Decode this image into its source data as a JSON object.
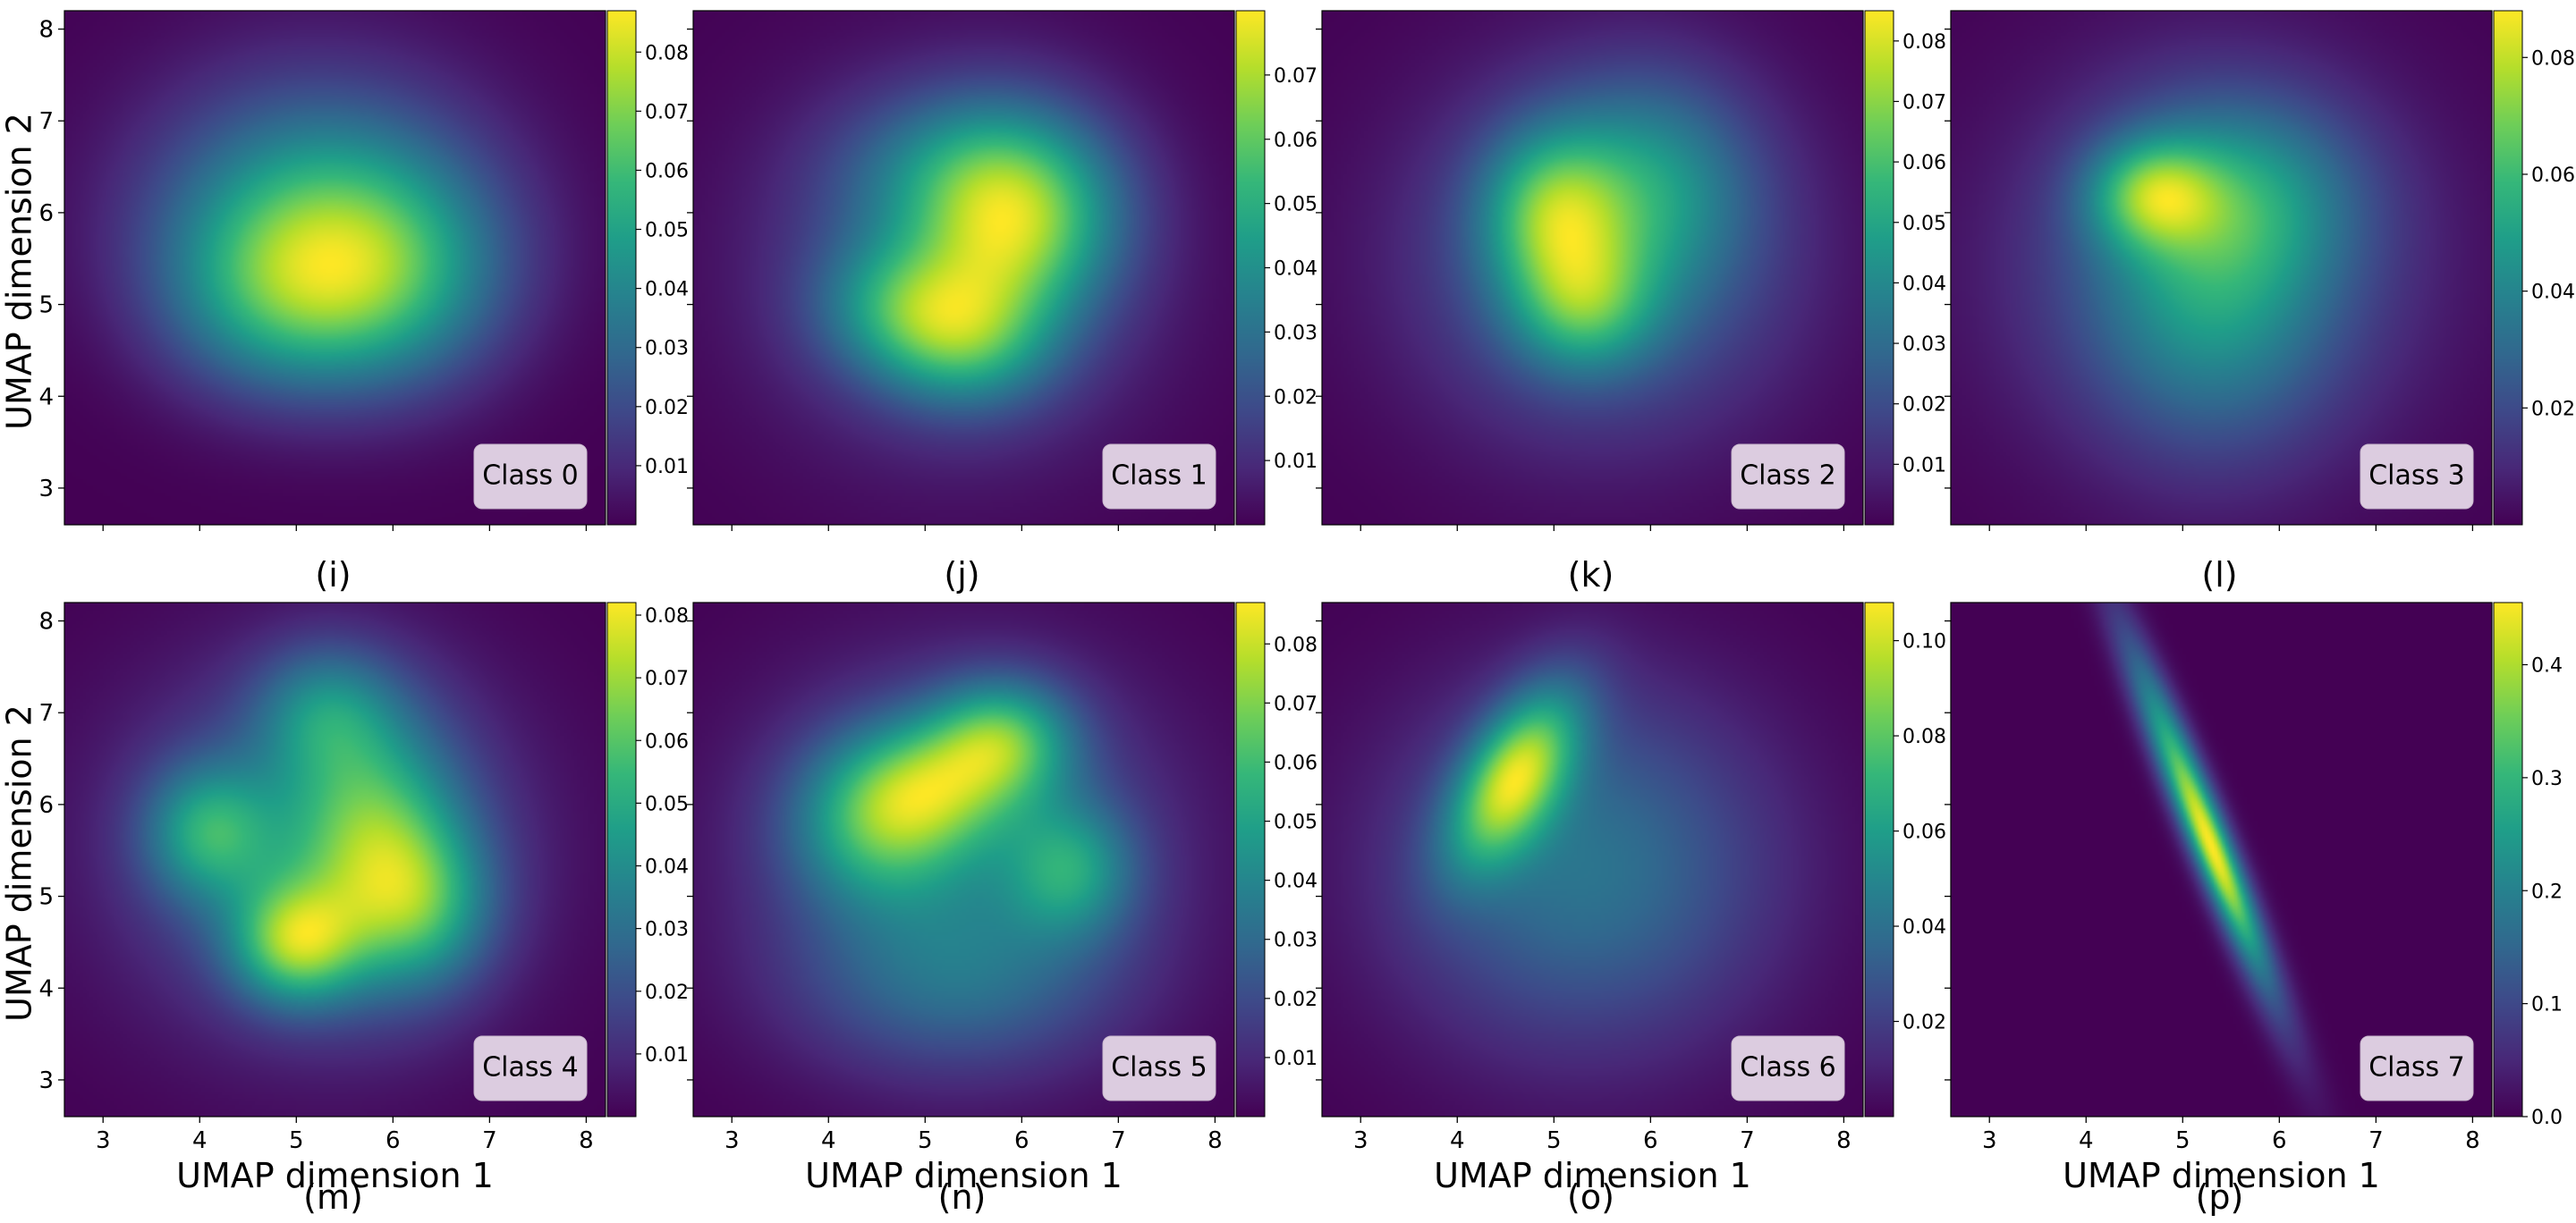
{
  "chart_data": [
    {
      "type": "heatmap",
      "panel": "(i)",
      "badge": "Class 0",
      "xlim": [
        2.6,
        8.2
      ],
      "ylim": [
        2.6,
        8.2
      ],
      "xticks": [
        3,
        4,
        5,
        6,
        7,
        8
      ],
      "yticks": [
        3,
        4,
        5,
        6,
        7,
        8
      ],
      "xlabel": "",
      "ylabel": "UMAP dimension 2",
      "show_xticklabels": false,
      "show_yticklabels": true,
      "colormap": "viridis",
      "colorbar_range": [
        0.0,
        0.087
      ],
      "colorbar_ticks": [
        0.01,
        0.02,
        0.03,
        0.04,
        0.05,
        0.06,
        0.07,
        0.08
      ],
      "colorbar_tick_labels": [
        "0.01",
        "0.02",
        "0.03",
        "0.04",
        "0.05",
        "0.06",
        "0.07",
        "0.08"
      ],
      "density_peaks": [
        {
          "x": 5.3,
          "y": 5.6,
          "sx": 1.05,
          "sy": 0.85,
          "w": 1.0
        },
        {
          "x": 4.8,
          "y": 5.0,
          "sx": 0.8,
          "sy": 0.7,
          "w": 0.6
        },
        {
          "x": 6.0,
          "y": 5.2,
          "sx": 0.8,
          "sy": 0.8,
          "w": 0.6
        },
        {
          "x": 5.2,
          "y": 6.3,
          "sx": 1.2,
          "sy": 1.0,
          "w": 0.5
        }
      ]
    },
    {
      "type": "heatmap",
      "panel": "(j)",
      "badge": "Class 1",
      "xlim": [
        2.6,
        8.2
      ],
      "ylim": [
        2.6,
        8.2
      ],
      "xticks": [
        3,
        4,
        5,
        6,
        7,
        8
      ],
      "yticks": [
        3,
        4,
        5,
        6,
        7,
        8
      ],
      "xlabel": "",
      "ylabel": "",
      "show_xticklabels": false,
      "show_yticklabels": false,
      "colormap": "viridis",
      "colorbar_range": [
        0.0,
        0.08
      ],
      "colorbar_ticks": [
        0.01,
        0.02,
        0.03,
        0.04,
        0.05,
        0.06,
        0.07
      ],
      "colorbar_tick_labels": [
        "0.01",
        "0.02",
        "0.03",
        "0.04",
        "0.05",
        "0.06",
        "0.07"
      ],
      "density_peaks": [
        {
          "x": 4.8,
          "y": 5.0,
          "sx": 0.6,
          "sy": 0.5,
          "w": 0.8
        },
        {
          "x": 5.4,
          "y": 4.6,
          "sx": 0.6,
          "sy": 0.5,
          "w": 0.8
        },
        {
          "x": 5.8,
          "y": 5.8,
          "sx": 0.6,
          "sy": 0.8,
          "w": 1.0
        },
        {
          "x": 5.3,
          "y": 6.4,
          "sx": 0.8,
          "sy": 0.6,
          "w": 0.6
        },
        {
          "x": 6.4,
          "y": 6.0,
          "sx": 0.6,
          "sy": 0.7,
          "w": 0.5
        },
        {
          "x": 5.3,
          "y": 5.4,
          "sx": 1.3,
          "sy": 1.3,
          "w": 0.5
        }
      ]
    },
    {
      "type": "heatmap",
      "panel": "(k)",
      "badge": "Class 2",
      "xlim": [
        2.6,
        8.2
      ],
      "ylim": [
        2.6,
        8.2
      ],
      "xticks": [
        3,
        4,
        5,
        6,
        7,
        8
      ],
      "yticks": [
        3,
        4,
        5,
        6,
        7,
        8
      ],
      "xlabel": "",
      "ylabel": "",
      "show_xticklabels": false,
      "show_yticklabels": false,
      "colormap": "viridis",
      "colorbar_range": [
        0.0,
        0.085
      ],
      "colorbar_ticks": [
        0.01,
        0.02,
        0.03,
        0.04,
        0.05,
        0.06,
        0.07,
        0.08
      ],
      "colorbar_tick_labels": [
        "0.01",
        "0.02",
        "0.03",
        "0.04",
        "0.05",
        "0.06",
        "0.07",
        "0.08"
      ],
      "density_peaks": [
        {
          "x": 5.0,
          "y": 6.0,
          "sx": 0.5,
          "sy": 0.6,
          "w": 1.0
        },
        {
          "x": 5.3,
          "y": 5.0,
          "sx": 0.5,
          "sy": 0.5,
          "w": 0.8
        },
        {
          "x": 6.0,
          "y": 6.3,
          "sx": 0.7,
          "sy": 0.8,
          "w": 0.6
        },
        {
          "x": 5.5,
          "y": 5.5,
          "sx": 1.3,
          "sy": 1.3,
          "w": 0.6
        }
      ]
    },
    {
      "type": "heatmap",
      "panel": "(l)",
      "badge": "Class 3",
      "xlim": [
        2.6,
        8.2
      ],
      "ylim": [
        2.6,
        8.2
      ],
      "xticks": [
        3,
        4,
        5,
        6,
        7,
        8
      ],
      "yticks": [
        3,
        4,
        5,
        6,
        7,
        8
      ],
      "xlabel": "",
      "ylabel": "",
      "show_xticklabels": false,
      "show_yticklabels": false,
      "colormap": "viridis",
      "colorbar_range": [
        0.0,
        0.088
      ],
      "colorbar_ticks": [
        0.02,
        0.04,
        0.06,
        0.08
      ],
      "colorbar_tick_labels": [
        "0.02",
        "0.04",
        "0.06",
        "0.08"
      ],
      "density_peaks": [
        {
          "x": 4.7,
          "y": 6.2,
          "sx": 0.45,
          "sy": 0.4,
          "w": 1.0
        },
        {
          "x": 5.3,
          "y": 5.2,
          "sx": 0.8,
          "sy": 1.1,
          "w": 0.6
        },
        {
          "x": 5.7,
          "y": 6.2,
          "sx": 0.8,
          "sy": 0.7,
          "w": 0.5
        },
        {
          "x": 5.3,
          "y": 5.4,
          "sx": 1.4,
          "sy": 1.4,
          "w": 0.5
        }
      ]
    },
    {
      "type": "heatmap",
      "panel": "(m)",
      "badge": "Class 4",
      "xlim": [
        2.6,
        8.2
      ],
      "ylim": [
        2.6,
        8.2
      ],
      "xticks": [
        3,
        4,
        5,
        6,
        7,
        8
      ],
      "yticks": [
        3,
        4,
        5,
        6,
        7,
        8
      ],
      "xlabel": "UMAP dimension 1",
      "ylabel": "UMAP dimension 2",
      "show_xticklabels": true,
      "show_yticklabels": true,
      "colormap": "viridis",
      "colorbar_range": [
        0.0,
        0.082
      ],
      "colorbar_ticks": [
        0.01,
        0.02,
        0.03,
        0.04,
        0.05,
        0.06,
        0.07,
        0.08
      ],
      "colorbar_tick_labels": [
        "0.01",
        "0.02",
        "0.03",
        "0.04",
        "0.05",
        "0.06",
        "0.07",
        "0.08"
      ],
      "density_peaks": [
        {
          "x": 5.0,
          "y": 4.5,
          "sx": 0.45,
          "sy": 0.45,
          "w": 1.0
        },
        {
          "x": 4.1,
          "y": 5.7,
          "sx": 0.45,
          "sy": 0.5,
          "w": 0.7
        },
        {
          "x": 5.8,
          "y": 5.6,
          "sx": 0.6,
          "sy": 0.9,
          "w": 0.8
        },
        {
          "x": 5.3,
          "y": 7.0,
          "sx": 0.5,
          "sy": 0.5,
          "w": 0.5
        },
        {
          "x": 6.3,
          "y": 4.9,
          "sx": 0.5,
          "sy": 0.6,
          "w": 0.6
        },
        {
          "x": 5.2,
          "y": 5.5,
          "sx": 1.3,
          "sy": 1.3,
          "w": 0.5
        }
      ]
    },
    {
      "type": "heatmap",
      "panel": "(n)",
      "badge": "Class 5",
      "xlim": [
        2.6,
        8.2
      ],
      "ylim": [
        2.6,
        8.2
      ],
      "xticks": [
        3,
        4,
        5,
        6,
        7,
        8
      ],
      "yticks": [
        3,
        4,
        5,
        6,
        7,
        8
      ],
      "xlabel": "UMAP dimension 1",
      "ylabel": "",
      "show_xticklabels": true,
      "show_yticklabels": false,
      "colormap": "viridis",
      "colorbar_range": [
        0.0,
        0.087
      ],
      "colorbar_ticks": [
        0.01,
        0.02,
        0.03,
        0.04,
        0.05,
        0.06,
        0.07,
        0.08
      ],
      "colorbar_tick_labels": [
        "0.01",
        "0.02",
        "0.03",
        "0.04",
        "0.05",
        "0.06",
        "0.07",
        "0.08"
      ],
      "density_peaks": [
        {
          "x": 5.8,
          "y": 6.7,
          "sx": 0.5,
          "sy": 0.45,
          "w": 1.0
        },
        {
          "x": 4.5,
          "y": 5.8,
          "sx": 0.6,
          "sy": 0.6,
          "w": 0.8
        },
        {
          "x": 5.1,
          "y": 6.2,
          "sx": 0.6,
          "sy": 0.5,
          "w": 0.8
        },
        {
          "x": 6.5,
          "y": 5.3,
          "sx": 0.45,
          "sy": 0.5,
          "w": 0.7
        },
        {
          "x": 5.3,
          "y": 4.1,
          "sx": 1.1,
          "sy": 0.7,
          "w": 0.4
        },
        {
          "x": 5.4,
          "y": 5.5,
          "sx": 1.4,
          "sy": 1.3,
          "w": 0.5
        }
      ]
    },
    {
      "type": "heatmap",
      "panel": "(o)",
      "badge": "Class 6",
      "xlim": [
        2.6,
        8.2
      ],
      "ylim": [
        2.6,
        8.2
      ],
      "xticks": [
        3,
        4,
        5,
        6,
        7,
        8
      ],
      "yticks": [
        3,
        4,
        5,
        6,
        7,
        8
      ],
      "xlabel": "UMAP dimension 1",
      "ylabel": "",
      "show_xticklabels": true,
      "show_yticklabels": false,
      "colormap": "viridis",
      "colorbar_range": [
        0.0,
        0.108
      ],
      "colorbar_ticks": [
        0.02,
        0.04,
        0.06,
        0.08,
        0.1
      ],
      "colorbar_tick_labels": [
        "0.02",
        "0.04",
        "0.06",
        "0.08",
        "0.10"
      ],
      "density_peaks": [
        {
          "x": 4.6,
          "y": 6.3,
          "sx": 0.45,
          "sy": 0.65,
          "rho": 0.55,
          "w": 1.0
        },
        {
          "x": 5.3,
          "y": 5.3,
          "sx": 1.3,
          "sy": 1.3,
          "w": 0.45
        }
      ]
    },
    {
      "type": "heatmap",
      "panel": "(p)",
      "badge": "Class 7",
      "xlim": [
        2.6,
        8.2
      ],
      "ylim": [
        2.6,
        8.2
      ],
      "xticks": [
        3,
        4,
        5,
        6,
        7,
        8
      ],
      "yticks": [
        3,
        4,
        5,
        6,
        7,
        8
      ],
      "xlabel": "UMAP dimension 1",
      "ylabel": "",
      "show_xticklabels": true,
      "show_yticklabels": false,
      "colormap": "viridis",
      "colorbar_range": [
        0.0,
        0.455
      ],
      "colorbar_ticks": [
        0.0,
        0.1,
        0.2,
        0.3,
        0.4
      ],
      "colorbar_tick_labels": [
        "0.0",
        "0.1",
        "0.2",
        "0.3",
        "0.4"
      ],
      "density_peaks": [
        {
          "x": 5.2,
          "y": 5.8,
          "sx": 0.5,
          "sy": 1.25,
          "rho": -0.95,
          "w": 1.0
        },
        {
          "x": 5.35,
          "y": 5.4,
          "sx": 0.25,
          "sy": 0.6,
          "rho": -0.9,
          "w": 0.35
        }
      ]
    }
  ],
  "colors": {
    "viridis": [
      "#440154",
      "#482878",
      "#3e4989",
      "#31688e",
      "#26828e",
      "#1f9e89",
      "#35b779",
      "#6ece58",
      "#b5de2b",
      "#fde725"
    ],
    "badge_fill": "#dccce0",
    "badge_edge": "#c8b8cc"
  }
}
